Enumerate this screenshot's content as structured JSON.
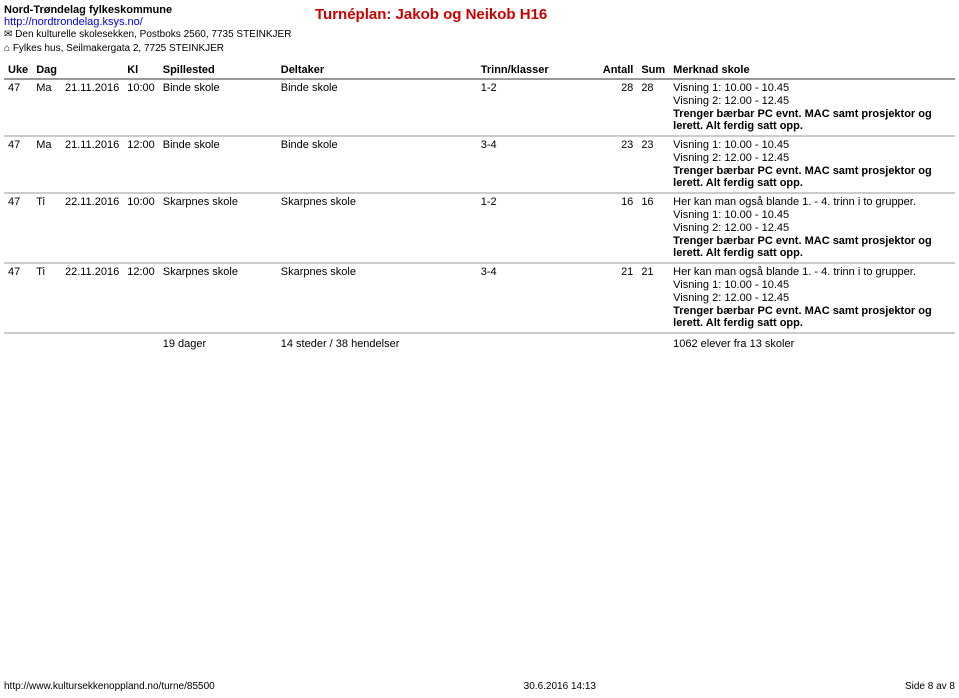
{
  "header": {
    "org_name": "Nord-Trøndelag fylkeskommune",
    "url": "http://nordtrondelag.ksys.no/",
    "line1": "✉ Den kulturelle skolesekken, Postboks 2560, 7735 STEINKJER",
    "line2": "⌂ Fylkes hus, Seilmakergata 2, 7725 STEINKJER"
  },
  "title": "Turnéplan: Jakob og Neikob H16",
  "columns": {
    "uke": "Uke",
    "dag": "Dag",
    "dato": "",
    "kl": "Kl",
    "spillested": "Spillested",
    "deltaker": "Deltaker",
    "trinn": "Trinn/klasser",
    "antall": "Antall",
    "sum": "Sum",
    "merknad": "Merknad skole"
  },
  "rows": [
    {
      "uke": "47",
      "dag": "Ma",
      "dato": "21.11.2016",
      "kl": "10:00",
      "spillested": "Binde skole",
      "deltaker": "Binde skole",
      "trinn": "1-2",
      "antall": "28",
      "sum": "28",
      "merknad": [
        {
          "t": "Visning 1: 10.00 - 10.45",
          "b": false
        },
        {
          "t": "Visning 2: 12.00 - 12.45",
          "b": false
        },
        {
          "t": "Trenger bærbar PC evnt. MAC samt prosjektor og lerett. Alt ferdig satt opp.",
          "b": true
        }
      ]
    },
    {
      "uke": "47",
      "dag": "Ma",
      "dato": "21.11.2016",
      "kl": "12:00",
      "spillested": "Binde skole",
      "deltaker": "Binde skole",
      "trinn": "3-4",
      "antall": "23",
      "sum": "23",
      "merknad": [
        {
          "t": "Visning 1: 10.00 - 10.45",
          "b": false
        },
        {
          "t": "Visning 2: 12.00 - 12.45",
          "b": false
        },
        {
          "t": "Trenger bærbar PC evnt. MAC samt prosjektor og lerett. Alt ferdig satt opp.",
          "b": true
        }
      ]
    },
    {
      "uke": "47",
      "dag": "Ti",
      "dato": "22.11.2016",
      "kl": "10:00",
      "spillested": "Skarpnes skole",
      "deltaker": "Skarpnes skole",
      "trinn": "1-2",
      "antall": "16",
      "sum": "16",
      "merknad": [
        {
          "t": "Her kan man også blande 1. - 4. trinn i to grupper.",
          "b": false
        },
        {
          "t": "Visning 1: 10.00 - 10.45",
          "b": false
        },
        {
          "t": "Visning 2: 12.00 - 12.45",
          "b": false
        },
        {
          "t": "Trenger bærbar PC evnt. MAC samt prosjektor og lerett. Alt ferdig satt opp.",
          "b": true
        }
      ]
    },
    {
      "uke": "47",
      "dag": "Ti",
      "dato": "22.11.2016",
      "kl": "12:00",
      "spillested": "Skarpnes skole",
      "deltaker": "Skarpnes skole",
      "trinn": "3-4",
      "antall": "21",
      "sum": "21",
      "merknad": [
        {
          "t": "Her kan man også blande 1. - 4. trinn i to grupper.",
          "b": false
        },
        {
          "t": "Visning 1: 10.00 - 10.45",
          "b": false
        },
        {
          "t": "Visning 2: 12.00 - 12.45",
          "b": false
        },
        {
          "t": "Trenger bærbar PC evnt. MAC samt prosjektor og lerett. Alt ferdig satt opp.",
          "b": true
        }
      ]
    }
  ],
  "summary": {
    "days": "19 dager",
    "places": "14 steder / 38 hendelser",
    "students": "1062 elever fra 13 skoler"
  },
  "footer": {
    "left": "http://www.kultursekkenoppland.no/turne/85500",
    "center": "30.6.2016 14:13",
    "right": "Side 8 av 8"
  }
}
